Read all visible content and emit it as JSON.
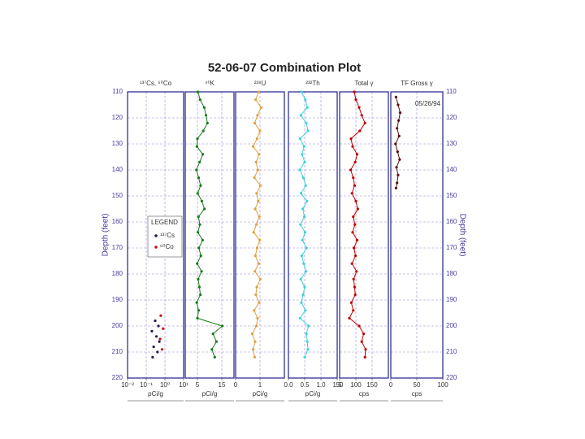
{
  "title": "52-06-07 Combination Plot",
  "depth_axis": {
    "label": "Depth (feet)",
    "ylim": [
      110,
      220
    ],
    "yticks": [
      110,
      120,
      130,
      140,
      150,
      160,
      170,
      180,
      190,
      200,
      210,
      220
    ],
    "grid": true
  },
  "chart_data": [
    {
      "type": "scatter",
      "title": "¹³⁷Cs, ⁶⁰Co",
      "x_label": "pCi/g",
      "xscale": "log",
      "xlim": [
        0.01,
        10
      ],
      "xticks": [
        {
          "value": 0.01,
          "label": "10⁻²"
        },
        {
          "value": 0.1,
          "label": "10⁻¹"
        },
        {
          "value": 1,
          "label": "10⁰"
        },
        {
          "value": 10,
          "label": "10¹"
        }
      ],
      "legend_title": "LEGEND",
      "series": [
        {
          "name": "¹³⁷Cs",
          "color": "#2a1a4a",
          "depth": [
            198,
            200,
            202,
            204,
            206,
            208,
            210,
            212
          ],
          "values": [
            0.3,
            0.45,
            0.2,
            0.35,
            0.5,
            0.25,
            0.4,
            0.22
          ]
        },
        {
          "name": "⁶⁰Co",
          "color": "#c01010",
          "depth": [
            196,
            201,
            205,
            209
          ],
          "values": [
            0.6,
            0.8,
            0.55,
            0.7
          ]
        }
      ]
    },
    {
      "type": "line",
      "title": "⁴⁰K",
      "x_label": "pCi/g",
      "xlim": [
        0,
        20
      ],
      "xticks": [
        5,
        15
      ],
      "series": [
        {
          "color": "#1a7a1a",
          "depth": [
            110,
            113,
            116,
            119,
            122,
            125,
            128,
            131,
            134,
            137,
            140,
            143,
            146,
            149,
            152,
            155,
            158,
            161,
            164,
            167,
            170,
            173,
            176,
            179,
            182,
            185,
            188,
            191,
            194,
            197,
            200,
            203,
            206,
            209,
            212
          ],
          "values": [
            5.2,
            6.1,
            7.8,
            8.5,
            9.1,
            7.4,
            5.0,
            4.8,
            7.2,
            5.9,
            4.6,
            5.5,
            6.3,
            5.1,
            6.8,
            7.9,
            5.4,
            6.0,
            5.2,
            7.1,
            5.6,
            6.4,
            4.9,
            6.7,
            5.3,
            5.8,
            6.2,
            4.7,
            5.5,
            5.0,
            15.2,
            11.4,
            12.8,
            10.9,
            12.1
          ]
        }
      ]
    },
    {
      "type": "line",
      "title": "²³⁸U",
      "x_label": "pCi/g",
      "xlim": [
        0,
        2
      ],
      "xticks": [
        0,
        1
      ],
      "series": [
        {
          "color": "#e0a040",
          "depth": [
            110,
            113,
            116,
            119,
            122,
            125,
            128,
            131,
            134,
            137,
            140,
            143,
            146,
            149,
            152,
            155,
            158,
            161,
            164,
            167,
            170,
            173,
            176,
            179,
            182,
            185,
            188,
            191,
            194,
            197,
            200,
            203,
            206,
            209,
            212
          ],
          "values": [
            0.95,
            0.82,
            1.05,
            0.9,
            0.78,
            1.0,
            0.88,
            0.72,
            0.96,
            0.84,
            0.91,
            0.77,
            1.02,
            0.86,
            0.93,
            0.8,
            0.97,
            0.85,
            0.74,
            0.99,
            0.88,
            0.81,
            0.94,
            0.79,
            1.01,
            0.87,
            0.83,
            0.96,
            0.76,
            0.9,
            0.85,
            0.68,
            0.8,
            0.72,
            0.78
          ]
        }
      ]
    },
    {
      "type": "line",
      "title": "²³²Th",
      "x_label": "pCi/g",
      "xlim": [
        0,
        1.5
      ],
      "xticks": [
        {
          "value": 0,
          "label": "0.0"
        },
        0.5,
        {
          "value": 1,
          "label": "1.0"
        },
        1.5
      ],
      "series": [
        {
          "color": "#40d0e0",
          "depth": [
            110,
            113,
            116,
            119,
            122,
            125,
            128,
            131,
            134,
            137,
            140,
            143,
            146,
            149,
            152,
            155,
            158,
            161,
            164,
            167,
            170,
            173,
            176,
            179,
            182,
            185,
            188,
            191,
            194,
            197,
            200,
            203,
            206,
            209,
            212
          ],
          "values": [
            0.4,
            0.52,
            0.58,
            0.38,
            0.55,
            0.6,
            0.36,
            0.48,
            0.42,
            0.5,
            0.35,
            0.46,
            0.53,
            0.39,
            0.57,
            0.44,
            0.49,
            0.37,
            0.51,
            0.43,
            0.56,
            0.41,
            0.47,
            0.54,
            0.38,
            0.5,
            0.45,
            0.4,
            0.52,
            0.36,
            0.62,
            0.55,
            0.58,
            0.6,
            0.5
          ]
        }
      ]
    },
    {
      "type": "line",
      "title": "Total γ",
      "x_label": "cps",
      "xlim": [
        50,
        200
      ],
      "xticks": [
        50,
        100,
        150
      ],
      "series": [
        {
          "color": "#c00000",
          "depth": [
            110,
            113,
            116,
            119,
            122,
            125,
            128,
            131,
            134,
            137,
            140,
            143,
            146,
            149,
            152,
            155,
            158,
            161,
            164,
            167,
            170,
            173,
            176,
            179,
            182,
            185,
            188,
            191,
            194,
            197,
            200,
            203,
            206,
            209,
            212
          ],
          "values": [
            95,
            100,
            110,
            118,
            128,
            112,
            85,
            90,
            104,
            98,
            84,
            92,
            96,
            88,
            100,
            106,
            92,
            97,
            90,
            104,
            94,
            99,
            88,
            102,
            93,
            96,
            98,
            86,
            92,
            80,
            110,
            124,
            118,
            130,
            128
          ]
        }
      ]
    },
    {
      "type": "line",
      "title": "TF Gross γ",
      "x_label": "cps",
      "xlim": [
        0,
        100
      ],
      "xticks": [
        0,
        50,
        100
      ],
      "annotation": "05/26/94",
      "series": [
        {
          "color": "#5a1010",
          "depth": [
            112,
            115,
            118,
            121,
            124,
            127,
            130,
            133,
            136,
            139,
            142,
            145,
            147
          ],
          "values": [
            10,
            14,
            18,
            15,
            12,
            16,
            9,
            13,
            17,
            11,
            14,
            12,
            10
          ]
        }
      ]
    }
  ]
}
